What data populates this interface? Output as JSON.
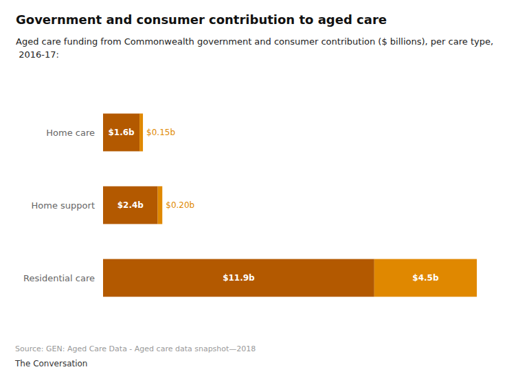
{
  "chart_data": {
    "type": "bar",
    "orientation": "horizontal",
    "stacked": true,
    "title": "Government and consumer contribution to aged care",
    "subtitle": "Aged care funding from Commonwealth government and consumer contribution ($ billions), per care type, 2016-17:",
    "categories": [
      "Home care",
      "Home support",
      "Residential care"
    ],
    "series": [
      {
        "name": "Commonwealth government",
        "color": "#b35900",
        "values": [
          1.6,
          2.4,
          11.9
        ],
        "value_labels": [
          "$1.6b",
          "$2.4b",
          "$11.9b"
        ]
      },
      {
        "name": "consumer contribution",
        "color": "#e08800",
        "values": [
          0.15,
          0.2,
          4.5
        ],
        "value_labels": [
          "$0.15b",
          "$0.20b",
          "$4.5b"
        ]
      }
    ],
    "xlim": [
      0,
      17
    ],
    "data_labels": true,
    "tick_labels": "y",
    "grid": false,
    "annotations": [
      "Source: GEN: Aged Care Data - Aged care data snapshot—2018",
      "The Conversation"
    ]
  }
}
